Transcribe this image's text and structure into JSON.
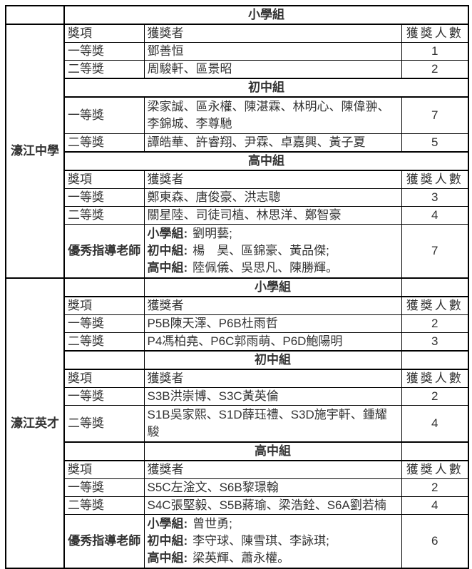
{
  "colors": {
    "border": "#000000",
    "text": "#333333",
    "background": "#ffffff"
  },
  "column_headers": {
    "award": "獎項",
    "winner": "獲獎者",
    "count": "獲獎人數"
  },
  "schools": [
    {
      "name": "濠江中學",
      "sections": [
        {
          "title": "小學組",
          "rows": [
            {
              "award": "一等獎",
              "winners": "鄧善恒",
              "count": "1"
            },
            {
              "award": "二等獎",
              "winners": "周駿軒、區景昭",
              "count": "2"
            }
          ]
        },
        {
          "title": "初中組",
          "rows": [
            {
              "award": "一等獎",
              "winners": "梁家誠、區永權、陳湛霖、林明心、陳偉翀、李錦城、李尊馳",
              "count": "7"
            },
            {
              "award": "二等獎",
              "winners": "譚皓華、許睿翔、尹霖、卓嘉興、黃子夏",
              "count": "5"
            }
          ]
        },
        {
          "title": "高中組",
          "rows": [
            {
              "award": "一等獎",
              "winners": "鄭東森、唐俊豪、洪志聰",
              "count": "3"
            },
            {
              "award": "二等獎",
              "winners": "關星陸、司徒司植、林思洋、鄭智豪",
              "count": "4"
            }
          ]
        }
      ],
      "teacher_row": {
        "label": "優秀指導老師",
        "lines": [
          {
            "group": "小學組:",
            "names": "劉明藝;"
          },
          {
            "group": "初中組:",
            "names": "楊　昊、區錦豪、黃品傑;"
          },
          {
            "group": "高中組:",
            "names": "陸佩儀、吳思凡、陳勝輝。"
          }
        ],
        "count": "7"
      }
    },
    {
      "name": "濠江英才",
      "sections": [
        {
          "title": "小學組",
          "rows": [
            {
              "award": "一等獎",
              "winners": "P5B陳天澤、P6B杜雨哲",
              "count": "2"
            },
            {
              "award": "二等獎",
              "winners": "P4馮柏堯、P6C郭雨萌、P6D鮑陽明",
              "count": "3"
            }
          ]
        },
        {
          "title": "初中組",
          "rows": [
            {
              "award": "一等獎",
              "winners": "S3B洪崇博、S3C黃英倫",
              "count": "2"
            },
            {
              "award": "二等獎",
              "winners": "S1B吳家熙、S1D薛珏禮、S3D施宇軒、鍾耀駿",
              "count": "4"
            }
          ]
        },
        {
          "title": "高中組",
          "rows": [
            {
              "award": "一等獎",
              "winners": "S5C左淦文、S6B黎璟翰",
              "count": "2"
            },
            {
              "award": "二等獎",
              "winners": "S4C張堅毅、S5B蔣瑜、梁浩銓、S6A劉若楠",
              "count": "4"
            }
          ]
        }
      ],
      "teacher_row": {
        "label": "優秀指導老師",
        "lines": [
          {
            "group": "小學組:",
            "names": "曾世勇;"
          },
          {
            "group": "初中組:",
            "names": "李守球、陳雪琪、李詠琪;"
          },
          {
            "group": "高中組:",
            "names": "梁英輝、蕭永權。"
          }
        ],
        "count": "6"
      }
    }
  ]
}
